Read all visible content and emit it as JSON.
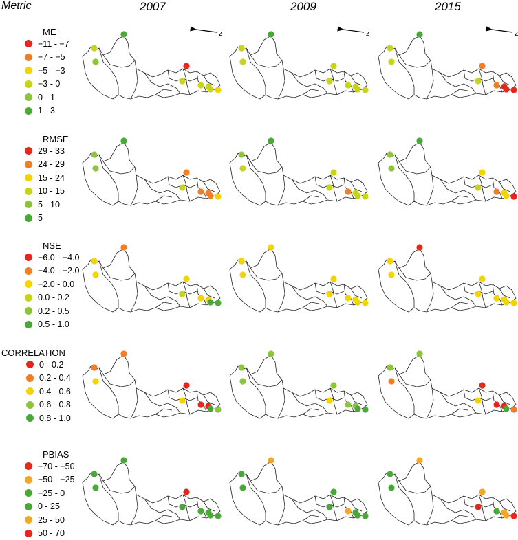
{
  "headers": {
    "metric": "Metric",
    "y2007": "2007",
    "y2009": "2009",
    "y2015": "2015"
  },
  "north_label": "z",
  "colors": {
    "red": "#e3281d",
    "orange": "#f07e26",
    "amber": "#f5a623",
    "yellow": "#f2d400",
    "lime": "#c8d41c",
    "lightgreen": "#8cc43c",
    "green": "#4aa838"
  },
  "metrics": [
    {
      "key": "me",
      "title": "ME",
      "classes": [
        {
          "label": "−11 -  −7",
          "color": "red"
        },
        {
          "label": "−7 -  −5",
          "color": "orange"
        },
        {
          "label": "−5 -  −3",
          "color": "yellow"
        },
        {
          "label": "−3 - 0",
          "color": "lime"
        },
        {
          "label": "0 - 1",
          "color": "lightgreen"
        },
        {
          "label": "1 - 3",
          "color": "green"
        }
      ],
      "years": [
        [
          "green",
          "lime",
          "lightgreen",
          "red",
          "lime",
          "lime",
          "lime",
          "lime",
          "yellow"
        ],
        [
          "green",
          "lime",
          "lime",
          "lime",
          "lime",
          "lime",
          "lime",
          "lime",
          "lime"
        ],
        [
          "green",
          "lime",
          "lime",
          "orange",
          "lime",
          "orange",
          "red",
          "red",
          "red"
        ]
      ]
    },
    {
      "key": "rmse",
      "title": "RMSE",
      "classes": [
        {
          "label": "29 - 33",
          "color": "red"
        },
        {
          "label": "24 - 29",
          "color": "orange"
        },
        {
          "label": "15 - 24",
          "color": "yellow"
        },
        {
          "label": "10 - 15",
          "color": "lime"
        },
        {
          "label": "5 - 10",
          "color": "lightgreen"
        },
        {
          "label": "5",
          "color": "green"
        }
      ],
      "years": [
        [
          "green",
          "lightgreen",
          "lightgreen",
          "orange",
          "lime",
          "orange",
          "orange",
          "orange",
          "yellow"
        ],
        [
          "green",
          "lightgreen",
          "lime",
          "lime",
          "lime",
          "orange",
          "lime",
          "lime",
          "lime"
        ],
        [
          "green",
          "lightgreen",
          "lightgreen",
          "yellow",
          "lime",
          "orange",
          "yellow",
          "yellow",
          "red"
        ]
      ]
    },
    {
      "key": "nse",
      "title": "NSE",
      "classes": [
        {
          "label": "−6.0 - −4.0",
          "color": "red"
        },
        {
          "label": "−4.0 - −2.0",
          "color": "orange"
        },
        {
          "label": "−2.0 - 0.0",
          "color": "yellow"
        },
        {
          "label": "0.0 - 0.2",
          "color": "lime"
        },
        {
          "label": "0.2 - 0.5",
          "color": "lightgreen"
        },
        {
          "label": "0.5 - 1.0",
          "color": "green"
        }
      ],
      "years": [
        [
          "orange",
          "yellow",
          "yellow",
          "yellow",
          "lime",
          "yellow",
          "yellow",
          "green",
          "green"
        ],
        [
          "yellow",
          "yellow",
          "yellow",
          "yellow",
          "yellow",
          "yellow",
          "yellow",
          "yellow",
          "yellow"
        ],
        [
          "red",
          "yellow",
          "yellow",
          "yellow",
          "yellow",
          "yellow",
          "yellow",
          "yellow",
          "yellow"
        ]
      ]
    },
    {
      "key": "correlation",
      "title": "CORRELATION",
      "classes": [
        {
          "label": "0 - 0.2",
          "color": "red"
        },
        {
          "label": "0.2 - 0.4",
          "color": "orange"
        },
        {
          "label": "0.4 - 0.6",
          "color": "yellow"
        },
        {
          "label": "0.6 - 0.8",
          "color": "lightgreen"
        },
        {
          "label": "0.8 - 1.0",
          "color": "green"
        }
      ],
      "years": [
        [
          "orange",
          "orange",
          "yellow",
          "red",
          "yellow",
          "red",
          "red",
          "green",
          "lightgreen"
        ],
        [
          "lightgreen",
          "lightgreen",
          "lightgreen",
          "lightgreen",
          "yellow",
          "lightgreen",
          "lightgreen",
          "green",
          "green"
        ],
        [
          "lightgreen",
          "lightgreen",
          "orange",
          "red",
          "yellow",
          "red",
          "red",
          "green",
          "orange"
        ]
      ]
    },
    {
      "key": "pbias",
      "title": "PBIAS",
      "classes": [
        {
          "label": "−70 -  −50",
          "color": "red"
        },
        {
          "label": "−50 -  −25",
          "color": "amber"
        },
        {
          "label": "−25 - 0",
          "color": "green"
        },
        {
          "label": "0 - 25",
          "color": "green"
        },
        {
          "label": "25 - 50",
          "color": "amber"
        },
        {
          "label": "50 - 70",
          "color": "red"
        }
      ],
      "years": [
        [
          "green",
          "green",
          "green",
          "red",
          "green",
          "green",
          "green",
          "green",
          "green"
        ],
        [
          "amber",
          "green",
          "green",
          "green",
          "green",
          "amber",
          "green",
          "green",
          "green"
        ],
        [
          "amber",
          "green",
          "green",
          "amber",
          "red",
          "green",
          "amber",
          "amber",
          "red"
        ]
      ]
    }
  ]
}
